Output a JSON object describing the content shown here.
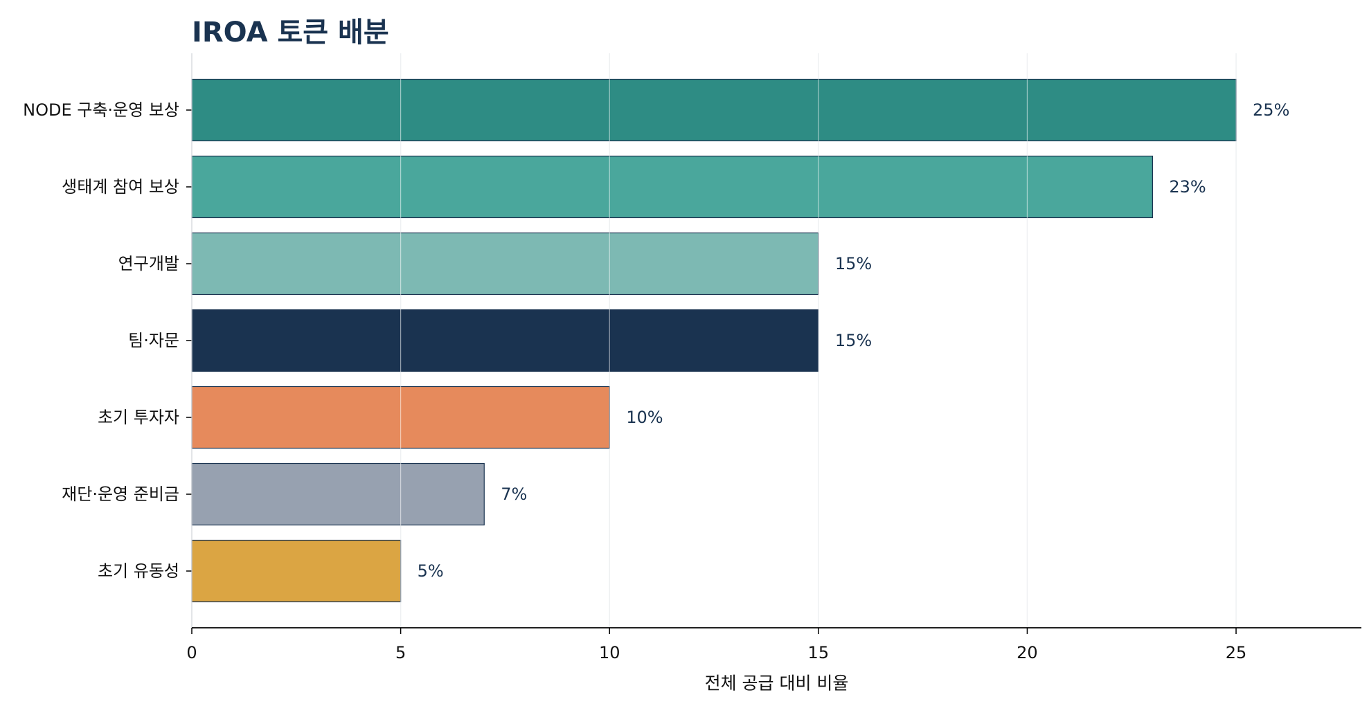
{
  "chart_data": {
    "type": "bar",
    "orientation": "horizontal",
    "title": "IROA 토큰 배분",
    "xlabel": "전체 공급 대비 비율",
    "ylabel": "",
    "xlim": [
      0,
      28
    ],
    "xticks": [
      0,
      5,
      10,
      15,
      20,
      25
    ],
    "grid": "vertical",
    "categories": [
      "NODE 구축·운영 보상",
      "생태계 참여 보상",
      "연구개발",
      "팀·자문",
      "초기 투자자",
      "재단·운영 준비금",
      "초기 유동성"
    ],
    "values": [
      25,
      23,
      15,
      15,
      10,
      7,
      5
    ],
    "data_labels": [
      "25%",
      "23%",
      "15%",
      "15%",
      "10%",
      "7%",
      "5%"
    ],
    "colors": [
      "#2e8c84",
      "#4aa79c",
      "#7db9b3",
      "#1a3350",
      "#e68a5c",
      "#97a1b0",
      "#dba543"
    ],
    "edge_color": "#1a3350",
    "text_color": "#1a3350",
    "grid_color": "#d9dde2"
  }
}
